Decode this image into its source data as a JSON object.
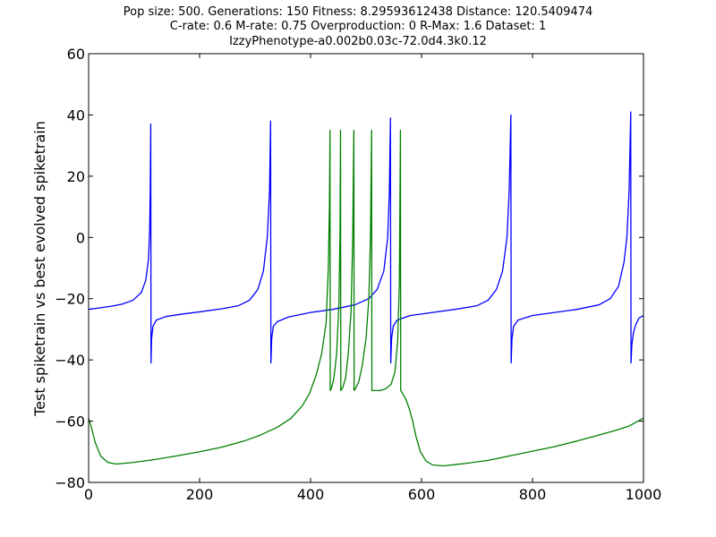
{
  "chart_data": {
    "type": "line",
    "title_lines": [
      "Pop size: 500. Generations: 150 Fitness: 8.29593612438 Distance: 120.5409474",
      "C-rate: 0.6 M-rate: 0.75 Overproduction: 0 R-Max: 1.6 Dataset: 1",
      "IzzyPhenotype-a0.002b0.03c-72.0d4.3k0.12"
    ],
    "xlabel": "",
    "ylabel": "Test spiketrain vs best evolved spiketrain",
    "xlim": [
      0,
      1000
    ],
    "ylim": [
      -80,
      60
    ],
    "xticks": [
      0,
      200,
      400,
      600,
      800,
      1000
    ],
    "yticks": [
      -80,
      -60,
      -40,
      -20,
      0,
      20,
      40,
      60
    ],
    "xtick_labels": [
      "0",
      "200",
      "400",
      "600",
      "800",
      "1000"
    ],
    "ytick_labels": [
      "−80",
      "−60",
      "−40",
      "−20",
      "0",
      "20",
      "40",
      "60"
    ],
    "grid": false,
    "series": [
      {
        "color": "#0000ff",
        "points": [
          [
            0,
            -23.5
          ],
          [
            20,
            -23
          ],
          [
            40,
            -22.5
          ],
          [
            60,
            -21.8
          ],
          [
            80,
            -20.5
          ],
          [
            95,
            -18
          ],
          [
            103,
            -14
          ],
          [
            108,
            -7
          ],
          [
            110,
            2
          ],
          [
            111,
            15
          ],
          [
            112,
            37
          ],
          [
            112.5,
            -41
          ],
          [
            113.5,
            -33
          ],
          [
            116,
            -29
          ],
          [
            122,
            -27
          ],
          [
            140,
            -25.8
          ],
          [
            170,
            -25
          ],
          [
            200,
            -24.3
          ],
          [
            240,
            -23.3
          ],
          [
            270,
            -22.3
          ],
          [
            290,
            -20.5
          ],
          [
            305,
            -17
          ],
          [
            315,
            -11
          ],
          [
            322,
            0
          ],
          [
            326,
            15
          ],
          [
            328,
            38
          ],
          [
            328.5,
            -41
          ],
          [
            330,
            -33
          ],
          [
            333,
            -29
          ],
          [
            340,
            -27.5
          ],
          [
            360,
            -26
          ],
          [
            400,
            -24.5
          ],
          [
            440,
            -23.5
          ],
          [
            480,
            -22
          ],
          [
            505,
            -20
          ],
          [
            520,
            -17
          ],
          [
            532,
            -11
          ],
          [
            539,
            0
          ],
          [
            542,
            15
          ],
          [
            544,
            39
          ],
          [
            544.5,
            -41
          ],
          [
            546,
            -33
          ],
          [
            549,
            -29
          ],
          [
            556,
            -27
          ],
          [
            580,
            -25.5
          ],
          [
            620,
            -24.5
          ],
          [
            660,
            -23.5
          ],
          [
            700,
            -22.3
          ],
          [
            720,
            -20.5
          ],
          [
            735,
            -17
          ],
          [
            746,
            -11
          ],
          [
            754,
            0
          ],
          [
            758,
            15
          ],
          [
            761,
            40
          ],
          [
            761.5,
            -41
          ],
          [
            763,
            -33
          ],
          [
            766,
            -29
          ],
          [
            774,
            -27
          ],
          [
            800,
            -25.5
          ],
          [
            840,
            -24.5
          ],
          [
            880,
            -23.5
          ],
          [
            920,
            -22
          ],
          [
            940,
            -20
          ],
          [
            955,
            -16
          ],
          [
            965,
            -8
          ],
          [
            970,
            0
          ],
          [
            974,
            15
          ],
          [
            977,
            41
          ],
          [
            977.5,
            -41
          ],
          [
            979,
            -35
          ],
          [
            982,
            -31
          ],
          [
            986,
            -28.5
          ],
          [
            992,
            -26.3
          ],
          [
            1000,
            -25.5
          ]
        ]
      },
      {
        "color": "#008000",
        "points": [
          [
            0,
            -59
          ],
          [
            5,
            -62
          ],
          [
            12,
            -67
          ],
          [
            22,
            -71.5
          ],
          [
            35,
            -73.5
          ],
          [
            50,
            -74
          ],
          [
            80,
            -73.5
          ],
          [
            120,
            -72.5
          ],
          [
            160,
            -71.3
          ],
          [
            200,
            -70
          ],
          [
            240,
            -68.5
          ],
          [
            280,
            -66.5
          ],
          [
            310,
            -64.5
          ],
          [
            340,
            -62
          ],
          [
            365,
            -59
          ],
          [
            385,
            -55
          ],
          [
            398,
            -51
          ],
          [
            410,
            -45
          ],
          [
            420,
            -38
          ],
          [
            428,
            -28
          ],
          [
            432,
            -10
          ],
          [
            434,
            10
          ],
          [
            435,
            35
          ],
          [
            435.5,
            -50
          ],
          [
            438,
            -49
          ],
          [
            442,
            -46
          ],
          [
            447,
            -38
          ],
          [
            451,
            -22
          ],
          [
            453,
            0
          ],
          [
            454,
            35
          ],
          [
            454.5,
            -50
          ],
          [
            458,
            -49
          ],
          [
            463,
            -46
          ],
          [
            468,
            -38
          ],
          [
            473,
            -24
          ],
          [
            476,
            0
          ],
          [
            478,
            35
          ],
          [
            478.5,
            -50
          ],
          [
            482,
            -49
          ],
          [
            487,
            -47
          ],
          [
            493,
            -42
          ],
          [
            500,
            -33
          ],
          [
            505,
            -20
          ],
          [
            508,
            0
          ],
          [
            510,
            35
          ],
          [
            510.5,
            -50
          ],
          [
            515,
            -50
          ],
          [
            525,
            -50
          ],
          [
            535,
            -49.5
          ],
          [
            545,
            -48
          ],
          [
            552,
            -44
          ],
          [
            557,
            -34
          ],
          [
            560,
            -15
          ],
          [
            562,
            35
          ],
          [
            562.5,
            -50
          ],
          [
            566,
            -51
          ],
          [
            572,
            -53
          ],
          [
            578,
            -56
          ],
          [
            584,
            -60
          ],
          [
            590,
            -65
          ],
          [
            598,
            -70
          ],
          [
            608,
            -73
          ],
          [
            620,
            -74.3
          ],
          [
            640,
            -74.6
          ],
          [
            680,
            -73.8
          ],
          [
            720,
            -72.8
          ],
          [
            760,
            -71.3
          ],
          [
            800,
            -69.8
          ],
          [
            840,
            -68.3
          ],
          [
            880,
            -66.5
          ],
          [
            920,
            -64.5
          ],
          [
            950,
            -63
          ],
          [
            975,
            -61.5
          ],
          [
            990,
            -60
          ],
          [
            1000,
            -59
          ]
        ]
      }
    ]
  }
}
